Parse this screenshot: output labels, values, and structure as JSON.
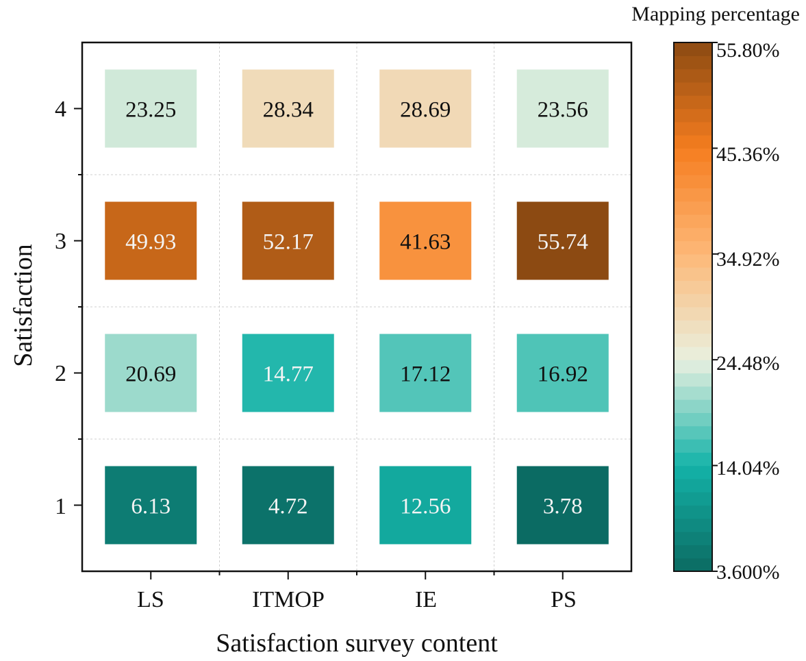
{
  "chart_data": {
    "type": "heatmap",
    "xlabel": "Satisfaction survey content",
    "ylabel": "Satisfaction",
    "x_categories": [
      "LS",
      "ITMOP",
      "IE",
      "PS"
    ],
    "y_categories": [
      "1",
      "2",
      "3",
      "4"
    ],
    "values": [
      [
        6.13,
        4.72,
        12.56,
        3.78
      ],
      [
        20.69,
        14.77,
        17.12,
        16.92
      ],
      [
        49.93,
        52.17,
        41.63,
        55.74
      ],
      [
        23.25,
        28.34,
        28.69,
        23.56
      ]
    ],
    "value_labels": [
      [
        "6.13",
        "4.72",
        "12.56",
        "3.78"
      ],
      [
        "20.69",
        "14.77",
        "17.12",
        "16.92"
      ],
      [
        "49.93",
        "52.17",
        "41.63",
        "55.74"
      ],
      [
        "23.25",
        "28.34",
        "28.69",
        "23.56"
      ]
    ],
    "colorbar": {
      "title": "Mapping percentage",
      "min": 3.6,
      "max": 55.8,
      "tick_labels": [
        "3.600%",
        "14.04%",
        "24.48%",
        "34.92%",
        "45.36%",
        "55.80%"
      ],
      "color_stops": [
        "#0b6a62",
        "#14b3a8",
        "#e9f0e0",
        "#fdb877",
        "#f57d1f",
        "#8b4a12"
      ]
    },
    "grid": true,
    "dark_text_color": "#111111",
    "light_text_color": "#f4f4f4"
  }
}
